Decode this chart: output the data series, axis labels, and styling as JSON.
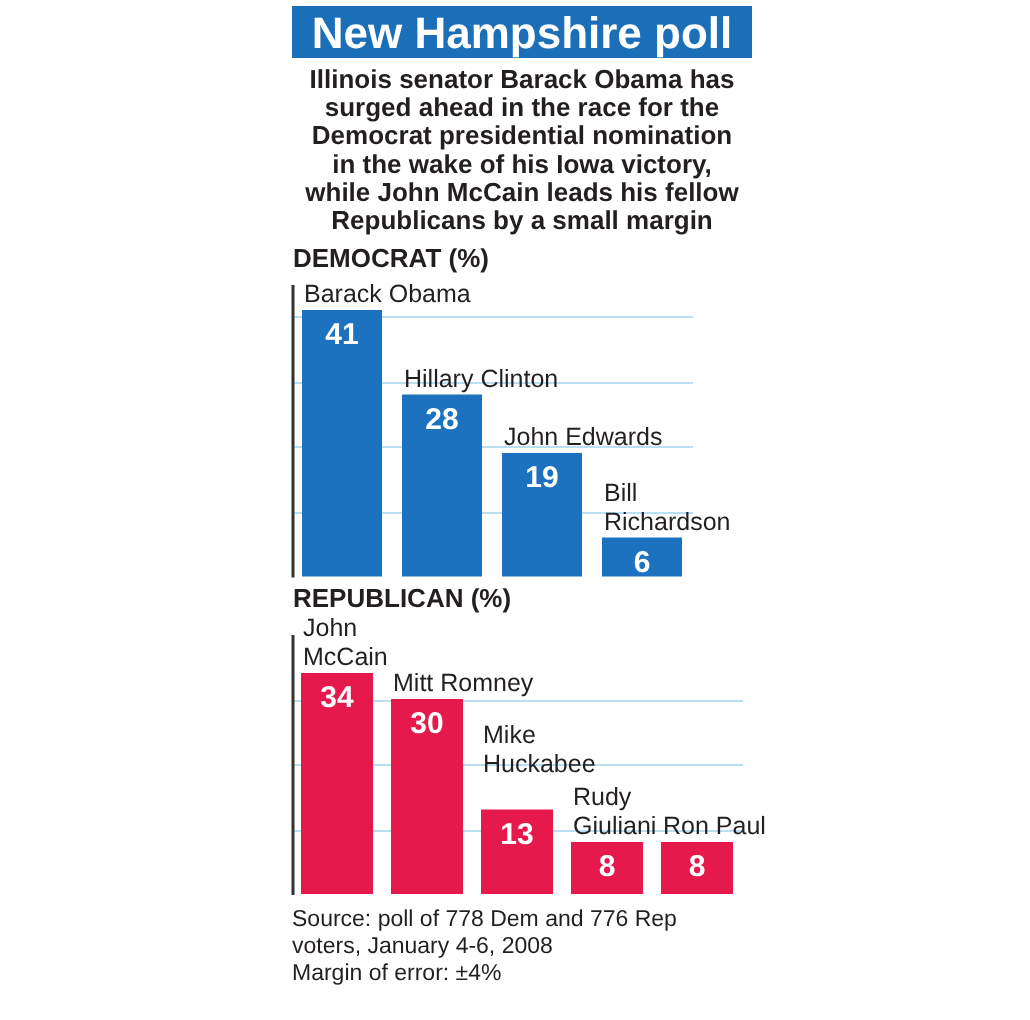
{
  "chart_data": [
    {
      "type": "bar",
      "title": "New Hampshire poll",
      "subtitle": "Illinois senator Barack Obama has surged ahead in the race for the Democrat presidential nomination in the wake of his Iowa victory, while John McCain leads his fellow Republicans by a small margin",
      "ylabel": "DEMOCRAT (%)",
      "categories": [
        "Barack Obama",
        "Hillary Clinton",
        "John Edwards",
        "Bill Richardson"
      ],
      "values": [
        41,
        28,
        19,
        6
      ],
      "color": "#1d72bf",
      "ylim": [
        0,
        45
      ],
      "yticks": [
        {
          "value": 10,
          "label": null
        },
        {
          "value": 20,
          "label": null
        },
        {
          "value": 30,
          "label": null
        },
        {
          "value": 40,
          "label": null
        }
      ],
      "grid": "y",
      "tick_labels": "x",
      "data_labels": true
    },
    {
      "type": "bar",
      "ylabel": "REPUBLICAN (%)",
      "categories": [
        "John McCain",
        "Mitt Romney",
        "Mike Huckabee",
        "Rudy Giuliani",
        "Ron Paul"
      ],
      "values": [
        34,
        30,
        13,
        8,
        8
      ],
      "color": "#e5194b",
      "ylim": [
        0,
        40
      ],
      "yticks": [
        {
          "value": 10,
          "label": null
        },
        {
          "value": 20,
          "label": null
        },
        {
          "value": 30,
          "label": null
        }
      ],
      "grid": "y",
      "tick_labels": "x",
      "data_labels": true,
      "annotations": [
        "Source: poll of 778 Dem and 776 Rep voters, January 4-6, 2008",
        "Margin of error: ±4%"
      ]
    }
  ]
}
